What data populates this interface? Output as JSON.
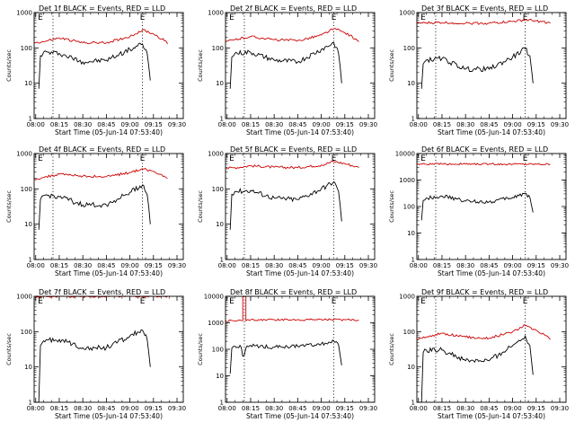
{
  "figure": {
    "background": "#ffffff",
    "colors": {
      "events": "#000000",
      "lld": "#cc0000",
      "axes": "#000000"
    }
  },
  "chart_data": [
    {
      "type": "line",
      "title": "Det 1f BLACK = Events, RED = LLD",
      "xlabel": "Start Time (05-Jun-14 07:53:40)",
      "ylabel": "Counts/sec",
      "yscale": "log",
      "ylim": [
        1,
        1000
      ],
      "x_ticks": [
        "08:00",
        "08:15",
        "08:30",
        "08:45",
        "09:00",
        "09:15",
        "09:30"
      ],
      "y_ticks": [
        "1",
        "10",
        "100",
        "1000"
      ],
      "markers": [
        {
          "label": "E",
          "time": "08:03"
        },
        {
          "label": "E",
          "time": "09:08"
        }
      ],
      "vlines": [
        "08:11",
        "09:08"
      ],
      "series": [
        {
          "name": "Events",
          "color": "#000000",
          "x": [
            "08:02",
            "08:03",
            "08:05",
            "08:15",
            "08:30",
            "08:45",
            "09:00",
            "09:08",
            "09:11",
            "09:12",
            "09:13"
          ],
          "values": [
            7,
            60,
            75,
            70,
            40,
            45,
            90,
            130,
            70,
            30,
            12
          ]
        },
        {
          "name": "LLD",
          "color": "#cc0000",
          "x": [
            "07:59",
            "08:05",
            "08:15",
            "08:30",
            "08:45",
            "09:00",
            "09:08",
            "09:15",
            "09:22",
            "09:24"
          ],
          "values": [
            140,
            150,
            190,
            140,
            140,
            210,
            320,
            250,
            160,
            130
          ]
        }
      ]
    },
    {
      "type": "line",
      "title": "Det 2f BLACK = Events, RED = LLD",
      "xlabel": "Start Time (05-Jun-14 07:53:40)",
      "ylabel": "Counts/sec",
      "yscale": "log",
      "ylim": [
        1,
        1000
      ],
      "x_ticks": [
        "08:00",
        "08:15",
        "08:30",
        "08:45",
        "09:00",
        "09:15",
        "09:30"
      ],
      "y_ticks": [
        "1",
        "10",
        "100",
        "1000"
      ],
      "markers": [
        {
          "label": "E",
          "time": "08:03"
        },
        {
          "label": "E",
          "time": "09:08"
        }
      ],
      "vlines": [
        "08:11",
        "09:08"
      ],
      "series": [
        {
          "name": "Events",
          "color": "#000000",
          "x": [
            "08:02",
            "08:03",
            "08:05",
            "08:15",
            "08:30",
            "08:45",
            "09:00",
            "09:08",
            "09:11",
            "09:12",
            "09:13"
          ],
          "values": [
            7,
            55,
            70,
            75,
            45,
            40,
            90,
            140,
            70,
            30,
            10
          ]
        },
        {
          "name": "LLD",
          "color": "#cc0000",
          "x": [
            "07:59",
            "08:05",
            "08:15",
            "08:30",
            "08:45",
            "09:00",
            "09:08",
            "09:15",
            "09:22",
            "09:24"
          ],
          "values": [
            150,
            170,
            210,
            170,
            160,
            230,
            350,
            270,
            180,
            150
          ]
        }
      ]
    },
    {
      "type": "line",
      "title": "Det 3f BLACK = Events, RED = LLD",
      "xlabel": "Start Time (05-Jun-14 07:53:40)",
      "ylabel": "Counts/sec",
      "yscale": "log",
      "ylim": [
        1,
        1000
      ],
      "x_ticks": [
        "08:00",
        "08:15",
        "08:30",
        "08:45",
        "09:00",
        "09:15",
        "09:30"
      ],
      "y_ticks": [
        "1",
        "10",
        "100",
        "1000"
      ],
      "markers": [
        {
          "label": "E",
          "time": "08:03"
        },
        {
          "label": "E",
          "time": "09:08"
        }
      ],
      "vlines": [
        "08:11",
        "09:08"
      ],
      "series": [
        {
          "name": "Events",
          "color": "#000000",
          "x": [
            "08:02",
            "08:03",
            "08:05",
            "08:15",
            "08:30",
            "08:45",
            "09:00",
            "09:08",
            "09:11",
            "09:12",
            "09:13"
          ],
          "values": [
            7,
            35,
            45,
            50,
            25,
            25,
            55,
            95,
            60,
            25,
            10
          ]
        },
        {
          "name": "LLD",
          "color": "#cc0000",
          "x": [
            "07:59",
            "08:05",
            "08:15",
            "08:30",
            "08:45",
            "09:00",
            "09:08",
            "09:15",
            "09:22",
            "09:24"
          ],
          "values": [
            500,
            510,
            520,
            500,
            500,
            560,
            620,
            580,
            520,
            500
          ]
        }
      ]
    },
    {
      "type": "line",
      "title": "Det 4f BLACK = Events, RED = LLD",
      "xlabel": "Start Time (05-Jun-14 07:53:40)",
      "ylabel": "Counts/sec",
      "yscale": "log",
      "ylim": [
        1,
        1000
      ],
      "x_ticks": [
        "08:00",
        "08:15",
        "08:30",
        "08:45",
        "09:00",
        "09:15",
        "09:30"
      ],
      "y_ticks": [
        "1",
        "10",
        "100",
        "1000"
      ],
      "markers": [
        {
          "label": "E",
          "time": "08:03"
        },
        {
          "label": "E",
          "time": "09:08"
        }
      ],
      "vlines": [
        "08:11",
        "09:08"
      ],
      "series": [
        {
          "name": "Events",
          "color": "#000000",
          "x": [
            "08:02",
            "08:03",
            "08:05",
            "08:15",
            "08:30",
            "08:45",
            "09:00",
            "09:08",
            "09:11",
            "09:12",
            "09:13"
          ],
          "values": [
            7,
            50,
            65,
            60,
            35,
            35,
            80,
            130,
            70,
            30,
            10
          ]
        },
        {
          "name": "LLD",
          "color": "#cc0000",
          "x": [
            "07:59",
            "08:05",
            "08:15",
            "08:30",
            "08:45",
            "09:00",
            "09:08",
            "09:15",
            "09:22",
            "09:24"
          ],
          "values": [
            190,
            210,
            260,
            230,
            220,
            290,
            370,
            310,
            230,
            200
          ]
        }
      ]
    },
    {
      "type": "line",
      "title": "Det 5f BLACK = Events, RED = LLD",
      "xlabel": "Start Time (05-Jun-14 07:53:40)",
      "ylabel": "Counts/sec",
      "yscale": "log",
      "ylim": [
        1,
        1000
      ],
      "x_ticks": [
        "08:00",
        "08:15",
        "08:30",
        "08:45",
        "09:00",
        "09:15",
        "09:30"
      ],
      "y_ticks": [
        "1",
        "10",
        "100",
        "1000"
      ],
      "markers": [
        {
          "label": "E",
          "time": "08:03"
        },
        {
          "label": "E",
          "time": "09:08"
        }
      ],
      "vlines": [
        "08:11",
        "09:08"
      ],
      "series": [
        {
          "name": "Events",
          "color": "#000000",
          "x": [
            "08:02",
            "08:03",
            "08:05",
            "08:15",
            "08:30",
            "08:45",
            "09:00",
            "09:08",
            "09:11",
            "09:12",
            "09:13"
          ],
          "values": [
            7,
            70,
            85,
            90,
            55,
            50,
            100,
            160,
            85,
            35,
            12
          ]
        },
        {
          "name": "LLD",
          "color": "#cc0000",
          "x": [
            "07:59",
            "08:05",
            "08:15",
            "08:30",
            "08:45",
            "09:00",
            "09:08",
            "09:15",
            "09:22",
            "09:24"
          ],
          "values": [
            380,
            400,
            450,
            410,
            400,
            470,
            600,
            520,
            430,
            400
          ]
        }
      ]
    },
    {
      "type": "line",
      "title": "Det 6f BLACK = Events, RED = LLD",
      "xlabel": "Start Time (05-Jun-14 07:53:40)",
      "ylabel": "Counts/sec",
      "yscale": "log",
      "ylim": [
        1,
        10000
      ],
      "x_ticks": [
        "08:00",
        "08:15",
        "08:30",
        "08:45",
        "09:00",
        "09:15",
        "09:30"
      ],
      "y_ticks": [
        "1",
        "10",
        "100",
        "1000",
        "10000"
      ],
      "markers": [
        {
          "label": "E",
          "time": "08:03"
        },
        {
          "label": "E",
          "time": "09:08"
        }
      ],
      "vlines": [
        "08:11",
        "09:08"
      ],
      "series": [
        {
          "name": "Events",
          "color": "#000000",
          "x": [
            "08:02",
            "08:03",
            "08:05",
            "08:15",
            "08:30",
            "08:45",
            "09:00",
            "09:08",
            "09:11",
            "09:12",
            "09:13"
          ],
          "values": [
            30,
            170,
            210,
            250,
            160,
            150,
            220,
            320,
            220,
            110,
            60
          ]
        },
        {
          "name": "LLD",
          "color": "#cc0000",
          "x": [
            "07:59",
            "08:15",
            "08:30",
            "08:45",
            "09:00",
            "09:15",
            "09:24"
          ],
          "values": [
            4000,
            4000,
            4000,
            4000,
            4000,
            4000,
            4000
          ]
        }
      ]
    },
    {
      "type": "line",
      "title": "Det 7f BLACK = Events, RED = LLD",
      "xlabel": "Start Time (05-Jun-14 07:53:40)",
      "ylabel": "Counts/sec",
      "yscale": "log",
      "ylim": [
        1,
        1000
      ],
      "x_ticks": [
        "08:00",
        "08:15",
        "08:30",
        "08:45",
        "09:00",
        "09:15",
        "09:30"
      ],
      "y_ticks": [
        "1",
        "10",
        "100",
        "1000"
      ],
      "markers": [
        {
          "label": "E",
          "time": "08:03"
        },
        {
          "label": "E",
          "time": "09:08"
        }
      ],
      "vlines": [],
      "series": [
        {
          "name": "Events",
          "color": "#000000",
          "x": [
            "08:02",
            "08:03",
            "08:05",
            "08:15",
            "08:30",
            "08:45",
            "09:00",
            "09:08",
            "09:11",
            "09:12",
            "09:13"
          ],
          "values": [
            1,
            40,
            55,
            60,
            35,
            35,
            75,
            110,
            60,
            25,
            10
          ]
        },
        {
          "name": "LLD",
          "color": "#cc0000",
          "x": [
            "07:59",
            "08:15",
            "08:30",
            "08:45",
            "09:00",
            "09:15",
            "09:24"
          ],
          "values": [
            1000,
            1000,
            1000,
            1000,
            1000,
            1000,
            1000
          ]
        }
      ]
    },
    {
      "type": "line",
      "title": "Det 8f BLACK = Events, RED = LLD",
      "xlabel": "Start Time (05-Jun-14 07:53:40)",
      "ylabel": "Counts/sec",
      "yscale": "log",
      "ylim": [
        1,
        10000
      ],
      "x_ticks": [
        "08:00",
        "08:15",
        "08:30",
        "08:45",
        "09:00",
        "09:15",
        "09:30"
      ],
      "y_ticks": [
        "1",
        "10",
        "100",
        "1000",
        "10000"
      ],
      "markers": [
        {
          "label": "E",
          "time": "08:03"
        },
        {
          "label": "E",
          "time": "09:08"
        }
      ],
      "vlines": [
        "08:11",
        "09:08"
      ],
      "series": [
        {
          "name": "Events",
          "color": "#000000",
          "x": [
            "08:02",
            "08:03",
            "08:05",
            "08:09",
            "08:10",
            "08:11",
            "08:12",
            "08:15",
            "08:30",
            "08:45",
            "09:00",
            "09:08",
            "09:11",
            "09:12",
            "09:13"
          ],
          "values": [
            12,
            110,
            130,
            120,
            55,
            60,
            110,
            140,
            120,
            130,
            160,
            200,
            150,
            60,
            25
          ]
        },
        {
          "name": "LLD",
          "color": "#cc0000",
          "x": [
            "07:59",
            "08:05",
            "08:10",
            "08:10",
            "08:12",
            "08:12",
            "08:15",
            "08:30",
            "08:45",
            "09:00",
            "09:15",
            "09:24"
          ],
          "values": [
            1200,
            1200,
            1200,
            15000,
            15000,
            1200,
            1300,
            1300,
            1300,
            1350,
            1300,
            1250
          ]
        }
      ]
    },
    {
      "type": "line",
      "title": "Det 9f BLACK = Events, RED = LLD",
      "xlabel": "Start Time (05-Jun-14 07:53:40)",
      "ylabel": "Counts/sec",
      "yscale": "log",
      "ylim": [
        1,
        1000
      ],
      "x_ticks": [
        "08:00",
        "08:15",
        "08:30",
        "08:45",
        "09:00",
        "09:15",
        "09:30"
      ],
      "y_ticks": [
        "1",
        "10",
        "100",
        "1000"
      ],
      "markers": [
        {
          "label": "E",
          "time": "08:03"
        },
        {
          "label": "E",
          "time": "09:08"
        }
      ],
      "vlines": [
        "08:11",
        "09:08"
      ],
      "series": [
        {
          "name": "Events",
          "color": "#000000",
          "x": [
            "08:02",
            "08:03",
            "08:05",
            "08:15",
            "08:30",
            "08:45",
            "09:00",
            "09:08",
            "09:11",
            "09:12",
            "09:13"
          ],
          "values": [
            1,
            25,
            30,
            30,
            15,
            15,
            40,
            75,
            40,
            15,
            6
          ]
        },
        {
          "name": "LLD",
          "color": "#cc0000",
          "x": [
            "07:59",
            "08:05",
            "08:15",
            "08:30",
            "08:45",
            "09:00",
            "09:08",
            "09:15",
            "09:22",
            "09:24"
          ],
          "values": [
            60,
            70,
            90,
            70,
            65,
            100,
            150,
            110,
            75,
            60
          ]
        }
      ]
    }
  ]
}
